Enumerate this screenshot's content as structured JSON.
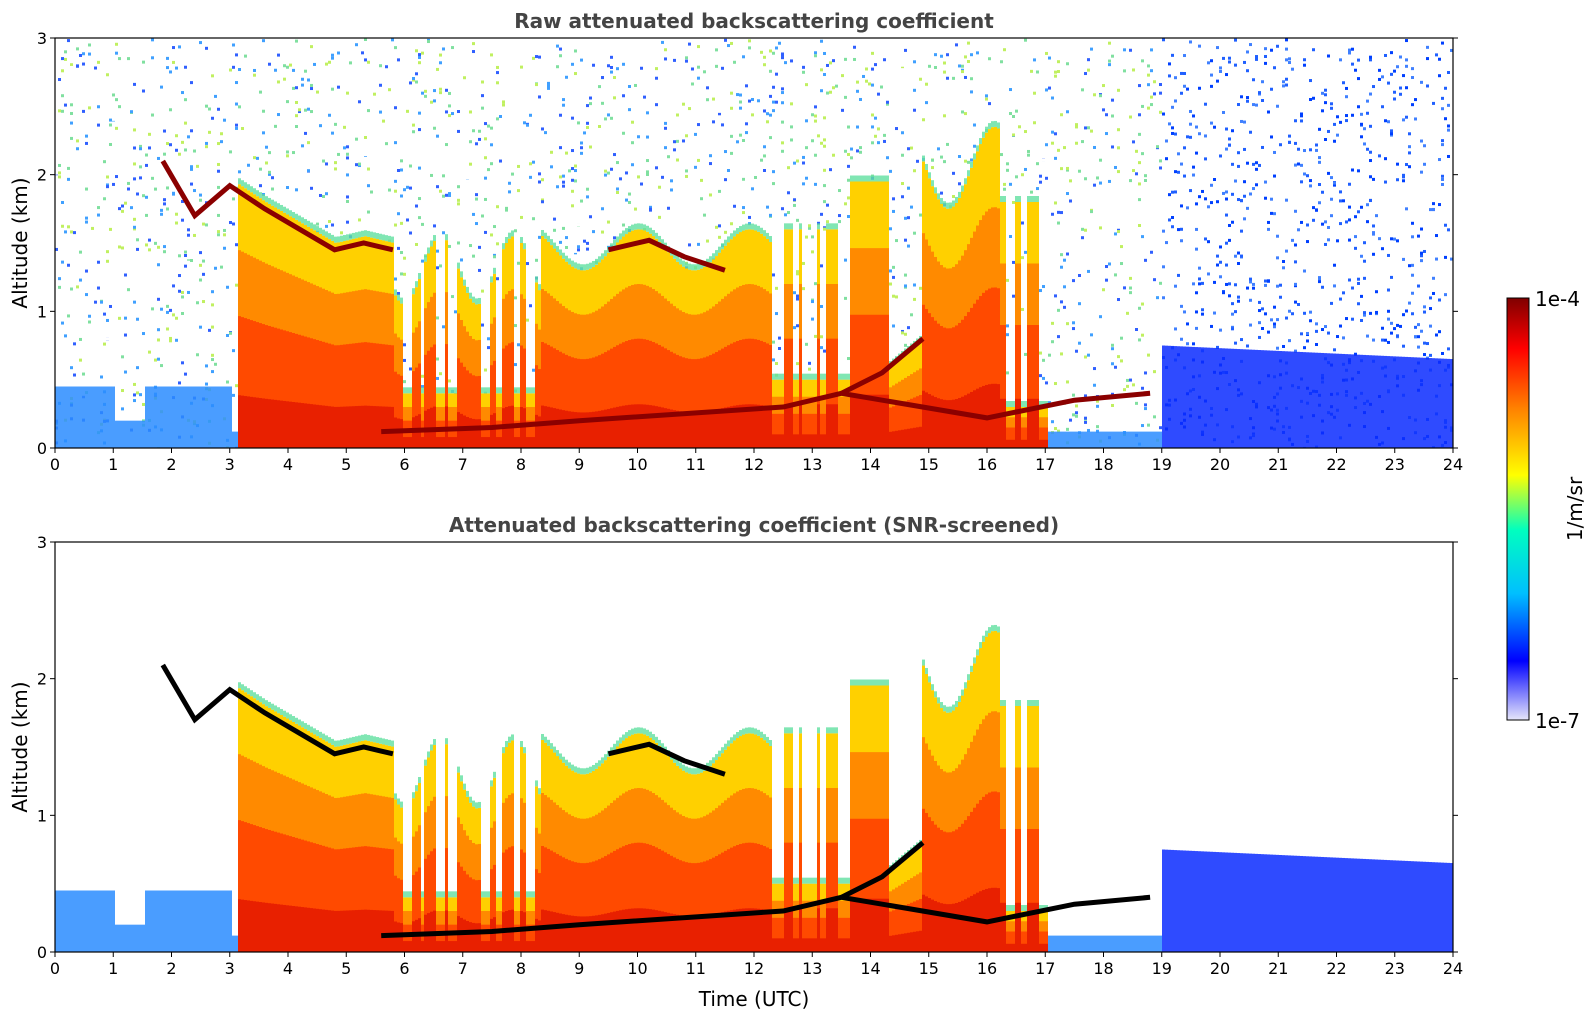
{
  "chart_data": [
    {
      "type": "heatmap",
      "title": "Raw attenuated backscattering coefficient",
      "xlabel": "",
      "ylabel": "Altitude (km)",
      "xlim": [
        0,
        24
      ],
      "ylim": [
        0,
        3
      ],
      "x_ticks": [
        "0",
        "1",
        "2",
        "3",
        "4",
        "5",
        "6",
        "7",
        "8",
        "9",
        "10",
        "11",
        "12",
        "13",
        "14",
        "15",
        "16",
        "17",
        "18",
        "19",
        "20",
        "21",
        "22",
        "23",
        "24"
      ],
      "y_ticks": [
        "0",
        "1",
        "2",
        "3"
      ],
      "screened": false,
      "cloud_base_profile": [
        [
          1.85,
          2.1
        ],
        [
          2.4,
          1.7
        ],
        [
          3.0,
          1.92
        ],
        [
          3.6,
          1.75
        ],
        [
          4.2,
          1.6
        ],
        [
          4.8,
          1.45
        ],
        [
          5.3,
          1.5
        ],
        [
          5.8,
          1.45
        ]
      ],
      "elevated_layer_profile": [
        [
          9.5,
          1.45
        ],
        [
          10.2,
          1.52
        ],
        [
          10.8,
          1.4
        ],
        [
          11.5,
          1.3
        ]
      ],
      "rising_layer_profile": [
        [
          13.5,
          0.4
        ],
        [
          14.2,
          0.55
        ],
        [
          14.9,
          0.8
        ]
      ],
      "surface_layer_profile": [
        [
          5.6,
          0.12
        ],
        [
          7.5,
          0.15
        ],
        [
          9.0,
          0.2
        ],
        [
          12.5,
          0.3
        ],
        [
          13.5,
          0.4
        ],
        [
          16.0,
          0.22
        ],
        [
          17.5,
          0.35
        ],
        [
          18.8,
          0.4
        ]
      ]
    },
    {
      "type": "heatmap",
      "title": "Attenuated backscattering coefficient (SNR-screened)",
      "xlabel": "Time (UTC)",
      "ylabel": "Altitude (km)",
      "xlim": [
        0,
        24
      ],
      "ylim": [
        0,
        3
      ],
      "x_ticks": [
        "0",
        "1",
        "2",
        "3",
        "4",
        "5",
        "6",
        "7",
        "8",
        "9",
        "10",
        "11",
        "12",
        "13",
        "14",
        "15",
        "16",
        "17",
        "18",
        "19",
        "20",
        "21",
        "22",
        "23",
        "24"
      ],
      "y_ticks": [
        "0",
        "1",
        "2",
        "3"
      ],
      "screened": true,
      "cloud_base_profile": [
        [
          1.85,
          2.1
        ],
        [
          2.4,
          1.7
        ],
        [
          3.0,
          1.92
        ],
        [
          3.6,
          1.75
        ],
        [
          4.2,
          1.6
        ],
        [
          4.8,
          1.45
        ],
        [
          5.3,
          1.5
        ],
        [
          5.8,
          1.45
        ]
      ],
      "elevated_layer_profile": [
        [
          9.5,
          1.45
        ],
        [
          10.2,
          1.52
        ],
        [
          10.8,
          1.4
        ],
        [
          11.5,
          1.3
        ]
      ],
      "rising_layer_profile": [
        [
          13.5,
          0.4
        ],
        [
          14.2,
          0.55
        ],
        [
          14.9,
          0.8
        ]
      ],
      "surface_layer_profile": [
        [
          5.6,
          0.12
        ],
        [
          7.5,
          0.15
        ],
        [
          9.0,
          0.2
        ],
        [
          12.5,
          0.3
        ],
        [
          13.5,
          0.4
        ],
        [
          16.0,
          0.22
        ],
        [
          17.5,
          0.35
        ],
        [
          18.8,
          0.4
        ]
      ]
    }
  ],
  "colorbar": {
    "label": "1/m/sr",
    "max_label": "1e-4",
    "min_label": "1e-7",
    "scale": "log",
    "range": [
      1e-07,
      0.0001
    ],
    "colormap": [
      "#e6e6fa",
      "#0000ff",
      "#00bfff",
      "#00ffbf",
      "#ffff00",
      "#ff8000",
      "#ff0000",
      "#800000"
    ]
  }
}
